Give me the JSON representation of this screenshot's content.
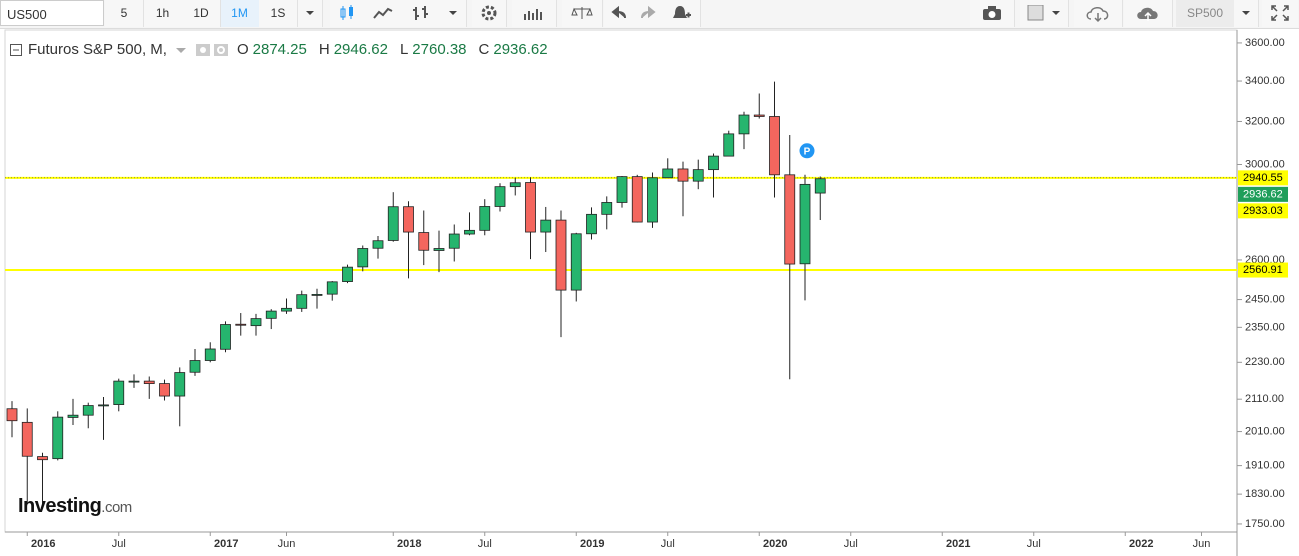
{
  "toolbar": {
    "symbol": "US500",
    "intervals": [
      "5",
      "1h",
      "1D",
      "1M",
      "1S"
    ],
    "active_interval": 3,
    "compare": "SP500"
  },
  "brand": {
    "name": "Investing",
    "suffix": ".com"
  },
  "chart_data": {
    "type": "candlestick",
    "title": "Futuros S&P 500, M,",
    "fields": [
      "O",
      "H",
      "L",
      "C"
    ],
    "up_color": "#26b56e",
    "down_color": "#f4665e",
    "open": [
      2080,
      2038,
      1936,
      1930,
      2053,
      2060,
      2090,
      2093,
      2168,
      2168,
      2160,
      2120,
      2197,
      2236,
      2274,
      2361,
      2356,
      2382,
      2408,
      2418,
      2468,
      2470,
      2517,
      2573,
      2646,
      2677,
      2816,
      2709,
      2637,
      2646,
      2703,
      2718,
      2817,
      2902,
      2920,
      2711,
      2760,
      2485,
      2704,
      2784,
      2834,
      2946,
      2752,
      2941,
      2980,
      2926,
      2977,
      3038,
      3141,
      3231,
      3224,
      2954,
      2585,
      2874.25
    ],
    "high": [
      2104,
      2081,
      1947,
      2072,
      2111,
      2099,
      2117,
      2176,
      2190,
      2183,
      2173,
      2213,
      2275,
      2298,
      2371,
      2401,
      2398,
      2415,
      2454,
      2483,
      2490,
      2519,
      2582,
      2657,
      2695,
      2878,
      2839,
      2800,
      2717,
      2742,
      2792,
      2848,
      2917,
      2941,
      2943,
      2815,
      2800,
      2708,
      2813,
      2860,
      2949,
      2954,
      2964,
      3028,
      3013,
      3022,
      3050,
      3156,
      3247,
      3337,
      3397,
      3136,
      2954,
      2946.62
    ],
    "low": [
      1993,
      1804,
      1802,
      1925,
      2030,
      2020,
      1985,
      2072,
      2146,
      2111,
      2106,
      2026,
      2185,
      2230,
      2264,
      2321,
      2321,
      2344,
      2398,
      2405,
      2417,
      2446,
      2511,
      2556,
      2605,
      2672,
      2529,
      2580,
      2553,
      2594,
      2698,
      2698,
      2796,
      2864,
      2603,
      2631,
      2316,
      2443,
      2681,
      2722,
      2812,
      2750,
      2728,
      2952,
      2776,
      2891,
      2855,
      3037,
      3070,
      3214,
      2855,
      2174,
      2447,
      2760.38
    ],
    "close": [
      2043,
      1937,
      1927,
      2054,
      2060,
      2090,
      2092,
      2168,
      2168,
      2160,
      2120,
      2196,
      2236,
      2275,
      2360,
      2358,
      2381,
      2408,
      2418,
      2468,
      2469,
      2516,
      2572,
      2645,
      2676,
      2816,
      2711,
      2638,
      2645,
      2703,
      2718,
      2817,
      2902,
      2919,
      2711,
      2760,
      2485,
      2704,
      2784,
      2834,
      2946,
      2752,
      2941,
      2980,
      2926,
      2977,
      3038,
      3141,
      3231,
      3224,
      2954,
      2584,
      2912,
      2936.62
    ],
    "log_scale": true,
    "ylim": [
      1729,
      3643
    ],
    "yticks": [
      {
        "value": 1750,
        "label": "1750.00"
      },
      {
        "value": 1830,
        "label": "1830.00"
      },
      {
        "value": 1910,
        "label": "1910.00"
      },
      {
        "value": 2010,
        "label": "2010.00"
      },
      {
        "value": 2110,
        "label": "2110.00"
      },
      {
        "value": 2230,
        "label": "2230.00"
      },
      {
        "value": 2350,
        "label": "2350.00"
      },
      {
        "value": 2450,
        "label": "2450.00"
      },
      {
        "value": 2600,
        "label": "2600.00"
      },
      {
        "value": 3000,
        "label": "3000.00"
      },
      {
        "value": 3200,
        "label": "3200.00"
      },
      {
        "value": 3400,
        "label": "3400.00"
      },
      {
        "value": 3600,
        "label": "3600.00"
      }
    ],
    "xticks": [
      {
        "value": 1,
        "label": "2016"
      },
      {
        "value": 7,
        "label": "Jul"
      },
      {
        "value": 13,
        "label": "2017"
      },
      {
        "value": 18,
        "label": "Jun"
      },
      {
        "value": 25,
        "label": "2018"
      },
      {
        "value": 31,
        "label": "Jul"
      },
      {
        "value": 37,
        "label": "2019"
      },
      {
        "value": 43,
        "label": "Jul"
      },
      {
        "value": 49,
        "label": "2020"
      },
      {
        "value": 55,
        "label": "Jul"
      },
      {
        "value": 61,
        "label": "2021"
      },
      {
        "value": 67,
        "label": "Jul"
      },
      {
        "value": 73,
        "label": "2022"
      },
      {
        "value": 78,
        "label": "Jun"
      }
    ],
    "levels": [
      {
        "value": 2940.55,
        "line": true
      },
      {
        "value": 2933.03,
        "line": false
      },
      {
        "value": 2560.91,
        "line": true
      }
    ],
    "level_color": "#ffff00",
    "annotation": "P"
  }
}
